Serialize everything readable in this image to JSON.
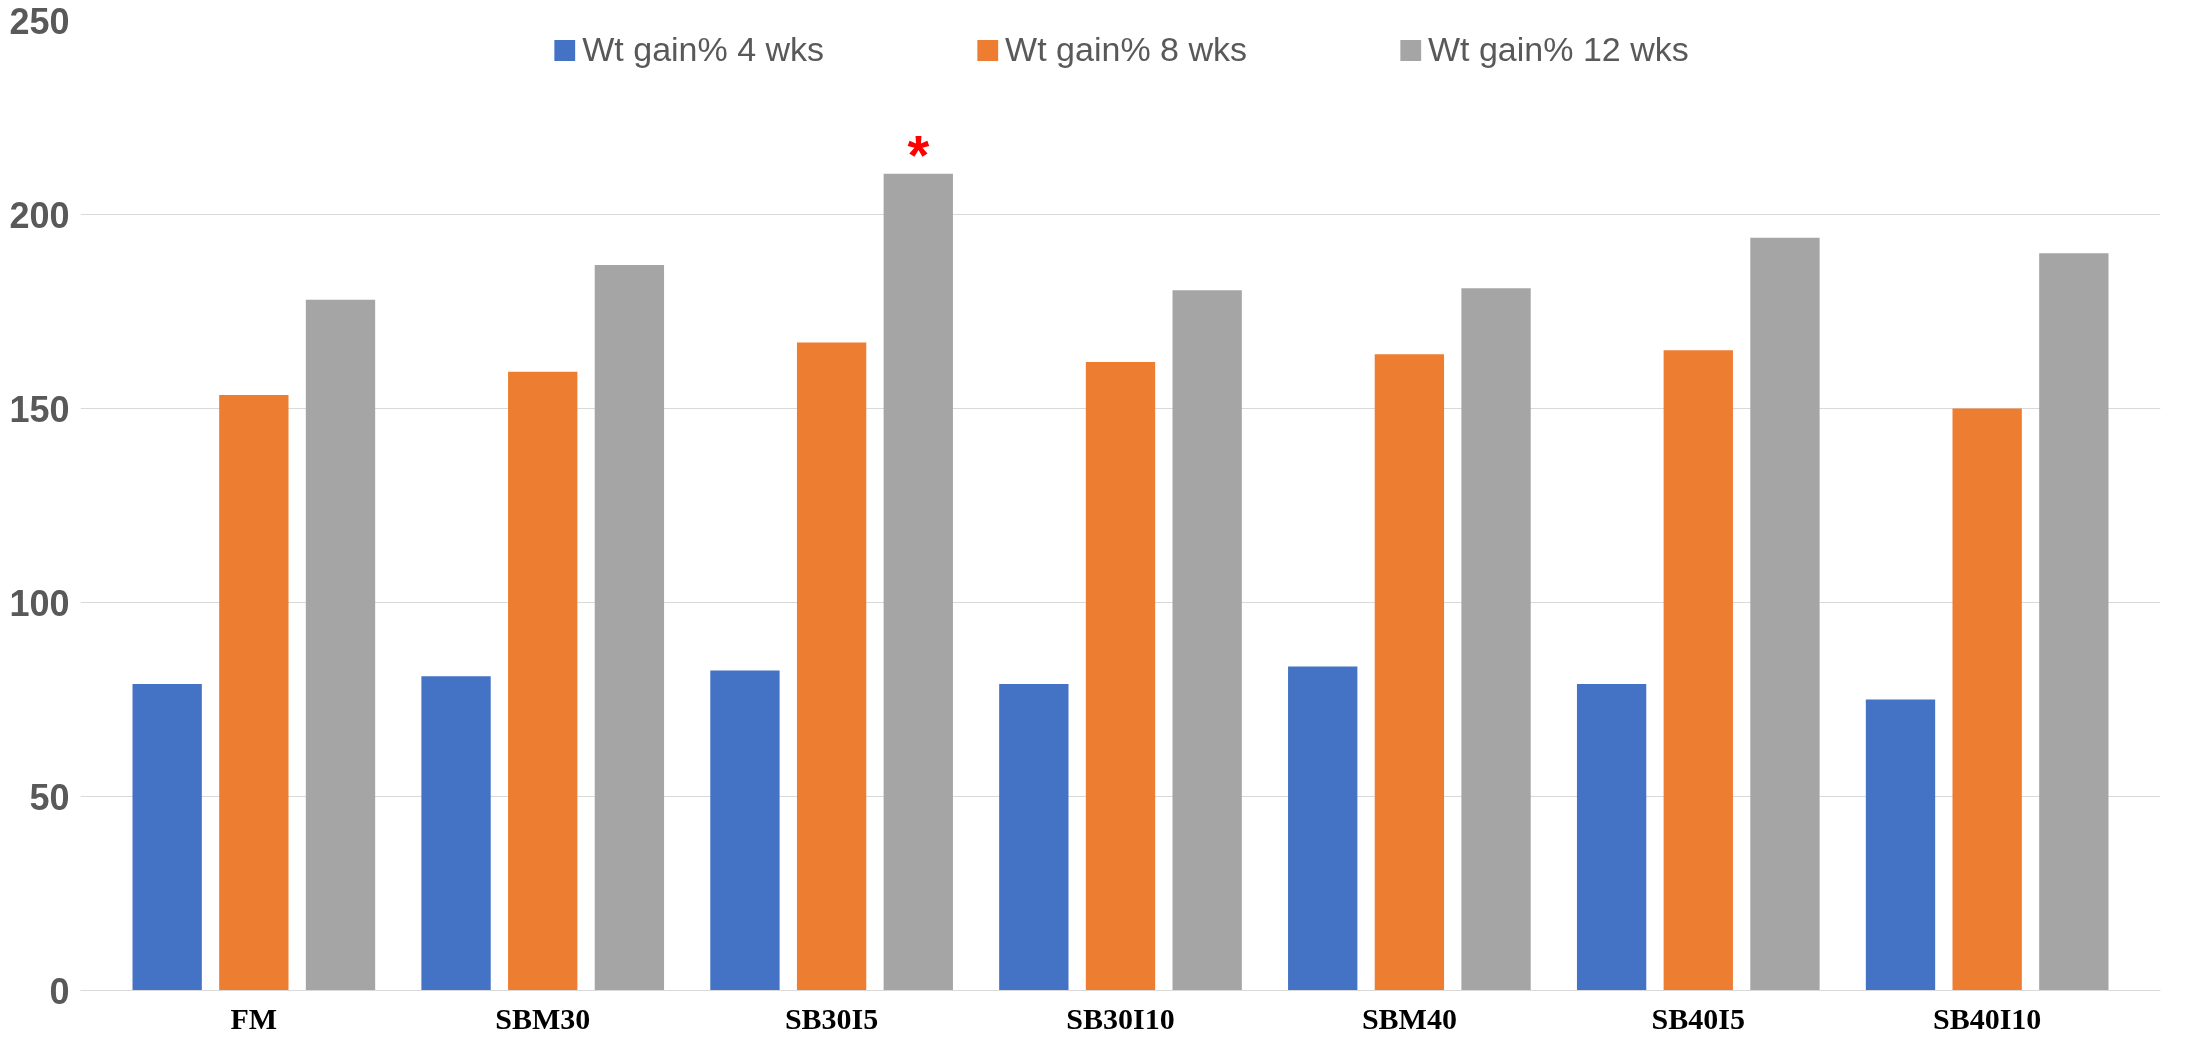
{
  "chart_data": {
    "type": "bar",
    "categories": [
      "FM",
      "SBM30",
      "SB30I5",
      "SB30I10",
      "SBM40",
      "SB40I5",
      "SB40I10"
    ],
    "series": [
      {
        "name": "Wt gain% 4 wks",
        "color": "#4472c4",
        "values": [
          79,
          81,
          82.5,
          79,
          83.5,
          79,
          75
        ]
      },
      {
        "name": "Wt gain% 8 wks",
        "color": "#ed7d31",
        "values": [
          153.5,
          159.5,
          167,
          162,
          164,
          165,
          150
        ]
      },
      {
        "name": "Wt gain% 12 wks",
        "color": "#a5a5a5",
        "values": [
          178,
          187,
          210.5,
          180.5,
          181,
          194,
          190
        ]
      }
    ],
    "ylim": [
      0,
      250
    ],
    "yticks": [
      0,
      50,
      100,
      150,
      200,
      250
    ],
    "grid": "y",
    "legend": "top",
    "annotations": [
      "*"
    ]
  }
}
